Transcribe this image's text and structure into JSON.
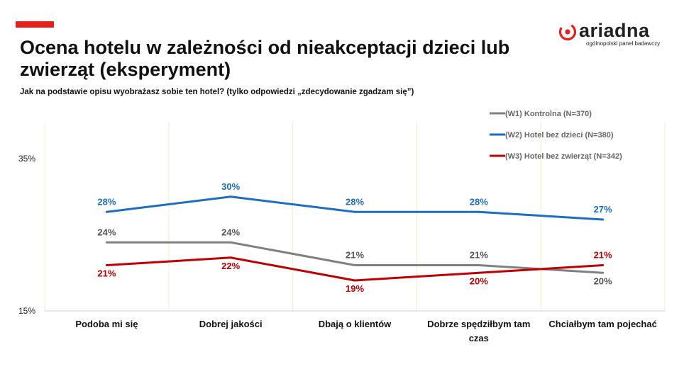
{
  "title": "Ocena hotelu w zależności od nieakceptacji dzieci lub zwierząt (eksperyment)",
  "subtitle": "Jak na podstawie opisu wyobrażasz sobie ten hotel? (tylko odpowiedzi „zdecydowanie zgadzam się”)",
  "logo": {
    "word": "ariadna",
    "tagline": "ogólnopolski panel badawczy"
  },
  "colors": {
    "accent": "#e3211b",
    "grid": "#f0f0c8"
  },
  "chart_data": {
    "type": "line",
    "categories": [
      [
        "Podoba mi się"
      ],
      [
        "Dobrej jakości"
      ],
      [
        "Dbają o klientów"
      ],
      [
        "Dobrze spędziłbym tam",
        "czas"
      ],
      [
        "Chciałbym tam pojechać"
      ]
    ],
    "ylim": [
      15,
      35
    ],
    "yticks": [
      {
        "value": 35,
        "label": "35%"
      },
      {
        "value": 15,
        "label": "15%"
      }
    ],
    "grid": "vertical",
    "legend_position": "top-right",
    "series": [
      {
        "name": "(W1) Kontrolna (N=370)",
        "color": "#808080",
        "values": [
          24,
          24,
          21,
          21,
          20
        ],
        "labels": [
          "24%",
          "24%",
          "21%",
          "21%",
          "20%"
        ],
        "label_pos": [
          "above",
          "above",
          "above",
          "above",
          "below"
        ]
      },
      {
        "name": "(W2) Hotel bez dzieci (N=380)",
        "color": "#1a6fc0",
        "values": [
          28,
          30,
          28,
          28,
          27
        ],
        "labels": [
          "28%",
          "30%",
          "28%",
          "28%",
          "27%"
        ],
        "label_pos": [
          "above",
          "above",
          "above",
          "above",
          "above"
        ]
      },
      {
        "name": "(W3) Hotel bez zwierząt (N=342)",
        "color": "#c00000",
        "values": [
          21,
          22,
          19,
          20,
          21
        ],
        "labels": [
          "21%",
          "22%",
          "19%",
          "20%",
          "21%"
        ],
        "label_pos": [
          "below",
          "below",
          "below",
          "below",
          "above"
        ]
      }
    ]
  }
}
